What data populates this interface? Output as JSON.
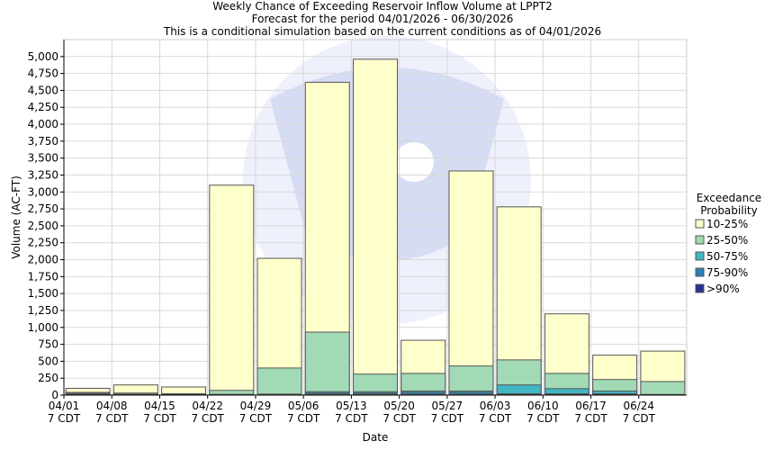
{
  "chart_data": {
    "type": "bar",
    "title": "Weekly Chance of Exceeding Reservoir Inflow Volume at LPPT2",
    "subtitle": "Forecast for the period 04/01/2026 - 06/30/2026",
    "subtitle2": "This is a conditional simulation based on the current conditions as of 04/01/2026",
    "xlabel": "Date",
    "ylabel": "Volume (AC-FT)",
    "ylim": [
      0,
      5250
    ],
    "yticks": [
      0,
      250,
      500,
      750,
      1000,
      1250,
      1500,
      1750,
      2000,
      2250,
      2500,
      2750,
      3000,
      3250,
      3500,
      3750,
      4000,
      4250,
      4500,
      4750,
      5000
    ],
    "ytick_labels": [
      "0",
      "250",
      "500",
      "750",
      "1,000",
      "1,250",
      "1,500",
      "1,750",
      "2,000",
      "2,250",
      "2,500",
      "2,750",
      "3,000",
      "3,250",
      "3,500",
      "3,750",
      "4,000",
      "4,250",
      "4,500",
      "4,750",
      "5,000"
    ],
    "categories": [
      "04/01",
      "04/08",
      "04/15",
      "04/22",
      "04/29",
      "05/06",
      "05/13",
      "05/20",
      "05/27",
      "06/03",
      "06/10",
      "06/17",
      "06/24"
    ],
    "category_sublabel": "7 CDT",
    "grid": true,
    "legend_title": [
      "Exceedance",
      "Probability"
    ],
    "legend_placement": "right",
    "series": [
      {
        "name": "10-25%",
        "color": "#ffffcc",
        "values": [
          100,
          150,
          120,
          3100,
          2020,
          4620,
          4960,
          810,
          3310,
          2780,
          1200,
          590,
          650
        ]
      },
      {
        "name": "25-50%",
        "color": "#a1dab4",
        "values": [
          40,
          30,
          20,
          70,
          400,
          930,
          310,
          320,
          430,
          520,
          320,
          230,
          200
        ]
      },
      {
        "name": "50-75%",
        "color": "#41b6c4",
        "values": [
          25,
          15,
          10,
          12,
          15,
          50,
          50,
          60,
          60,
          150,
          95,
          60,
          10
        ]
      },
      {
        "name": "75-90%",
        "color": "#2c7fb8",
        "values": [
          15,
          10,
          5,
          5,
          5,
          30,
          30,
          40,
          40,
          20,
          20,
          20,
          5
        ]
      },
      {
        "name": ">90%",
        "color": "#253494",
        "values": [
          10,
          5,
          3,
          3,
          3,
          10,
          10,
          10,
          10,
          10,
          10,
          10,
          3
        ]
      }
    ]
  }
}
